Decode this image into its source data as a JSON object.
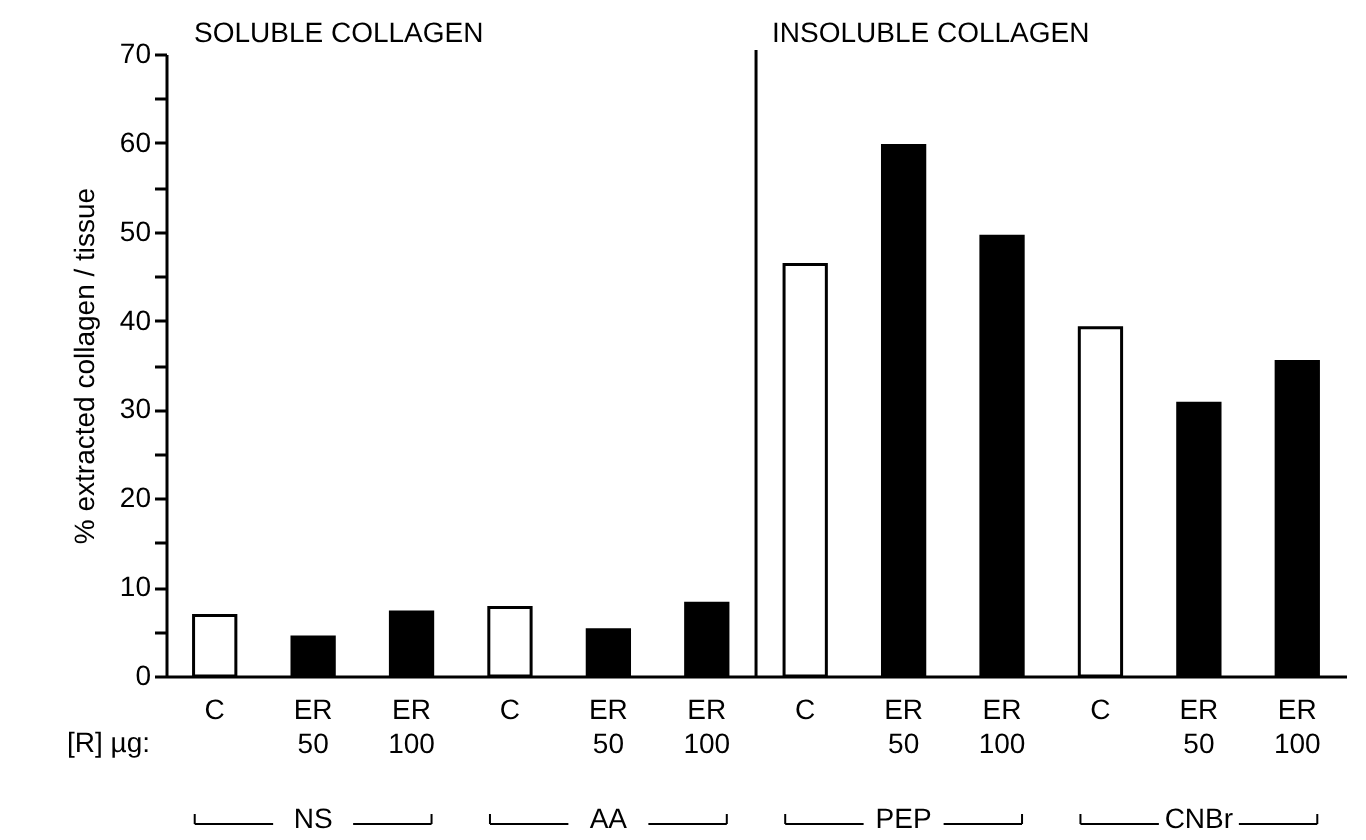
{
  "chart_data": {
    "type": "bar",
    "ylabel": "% extracted collagen / tissue",
    "categories": [
      "C",
      "ER 50",
      "ER 100",
      "C",
      "ER 50",
      "ER 100",
      "C",
      "ER 50",
      "ER 100",
      "C",
      "ER 50",
      "ER 100"
    ],
    "values": [
      6.8,
      4.4,
      7.2,
      7.7,
      5.2,
      8.2,
      46.3,
      59.7,
      49.5,
      39.2,
      30.7,
      35.4
    ],
    "colors": [
      "#ffffff",
      "#000000",
      "#000000",
      "#ffffff",
      "#000000",
      "#000000",
      "#ffffff",
      "#000000",
      "#000000",
      "#ffffff",
      "#000000",
      "#000000"
    ],
    "ylim": [
      0,
      70
    ],
    "yticks": [
      0,
      {
        "value": 5,
        "label": null
      },
      10,
      {
        "value": 15,
        "label": null
      },
      20,
      {
        "value": 25,
        "label": null
      },
      30,
      {
        "value": 35,
        "label": null
      },
      40,
      {
        "value": 45,
        "label": null
      },
      50,
      {
        "value": 55,
        "label": null
      },
      60,
      {
        "value": 65,
        "label": null
      },
      70
    ],
    "annotations": [
      "SOLUBLE COLLAGEN",
      "INSOLUBLE COLLAGEN",
      "[R] µg:",
      "NS",
      "AA",
      "PEP",
      "CNBr"
    ]
  }
}
